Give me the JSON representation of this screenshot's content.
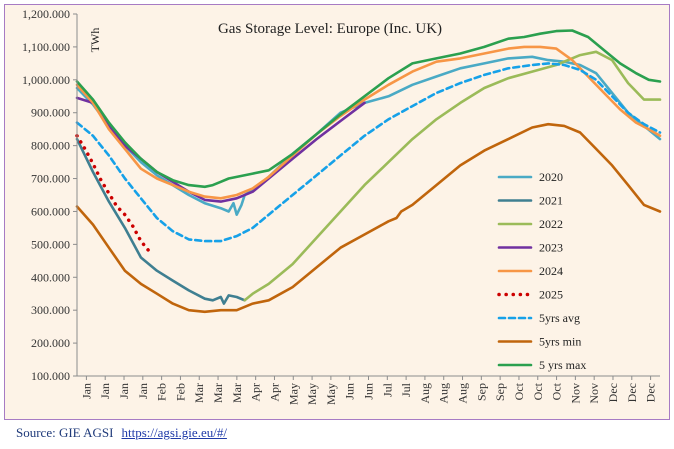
{
  "source": {
    "text": "Source: GIE AGSI",
    "link": "https://agsi.gie.eu/#/"
  },
  "chart_data": {
    "type": "line",
    "title": "Gas Storage Level: Europe (Inc. UK)",
    "ylabel": "TWh",
    "xlabel": "",
    "ylim": [
      100,
      1200
    ],
    "yticks": [
      "100.000",
      "200.000",
      "300.000",
      "400.000",
      "500.000",
      "600.000",
      "700.000",
      "800.000",
      "900.000",
      "1,000.000",
      "1,100.000",
      "1,200.000"
    ],
    "ytick_values": [
      100,
      200,
      300,
      400,
      500,
      600,
      700,
      800,
      900,
      1000,
      1100,
      1200
    ],
    "xlim": [
      0,
      365
    ],
    "x_unit": "day of year",
    "xticks": [
      "Jan",
      "Jan",
      "Jan",
      "Jan",
      "Feb",
      "Feb",
      "Mar",
      "Mar",
      "Mar",
      "Apr",
      "Apr",
      "May",
      "May",
      "May",
      "Jun",
      "Jun",
      "Jul",
      "Jul",
      "Aug",
      "Aug",
      "Aug",
      "Sep",
      "Sep",
      "Oct",
      "Oct",
      "Oct",
      "Nov",
      "Nov",
      "Dec",
      "Dec",
      "Dec"
    ],
    "grid": false,
    "legend_position": "right",
    "series": [
      {
        "name": "2020",
        "color": "#4aaac5",
        "style": "solid",
        "x": [
          0,
          10,
          20,
          30,
          40,
          50,
          60,
          70,
          80,
          90,
          95,
          98,
          100,
          103,
          105,
          110,
          120,
          135,
          150,
          165,
          180,
          195,
          210,
          225,
          240,
          255,
          270,
          285,
          295,
          305,
          315,
          325,
          335,
          345,
          355,
          365
        ],
        "y": [
          975,
          925,
          860,
          800,
          750,
          710,
          680,
          650,
          625,
          610,
          600,
          625,
          590,
          620,
          650,
          665,
          705,
          775,
          835,
          900,
          930,
          950,
          985,
          1010,
          1035,
          1050,
          1065,
          1070,
          1060,
          1055,
          1045,
          1020,
          960,
          900,
          860,
          820
        ]
      },
      {
        "name": "2021",
        "color": "#3f7f91",
        "style": "solid",
        "x": [
          0,
          10,
          20,
          30,
          40,
          50,
          60,
          70,
          80,
          85,
          90,
          92,
          95,
          100,
          105
        ],
        "y": [
          820,
          720,
          630,
          550,
          460,
          420,
          390,
          360,
          335,
          330,
          340,
          320,
          345,
          340,
          330
        ]
      },
      {
        "name": "2022",
        "color": "#9bbb59",
        "style": "solid",
        "x": [
          105,
          110,
          120,
          135,
          150,
          165,
          180,
          195,
          210,
          225,
          240,
          255,
          270,
          285,
          300,
          315,
          325,
          335,
          345,
          355,
          365
        ],
        "y": [
          330,
          350,
          380,
          440,
          520,
          600,
          680,
          750,
          820,
          880,
          930,
          975,
          1005,
          1025,
          1045,
          1075,
          1085,
          1060,
          990,
          940,
          940
        ]
      },
      {
        "name": "2023",
        "color": "#7030a0",
        "style": "solid",
        "x": [
          0,
          10,
          20,
          30,
          40,
          50,
          60,
          70,
          80,
          90,
          100,
          110,
          120,
          135,
          150,
          165,
          180
        ],
        "y": [
          945,
          930,
          860,
          800,
          760,
          720,
          690,
          660,
          635,
          630,
          640,
          660,
          700,
          760,
          820,
          875,
          930
        ]
      },
      {
        "name": "2024",
        "color": "#f79646",
        "style": "solid",
        "x": [
          0,
          10,
          20,
          30,
          40,
          50,
          60,
          70,
          80,
          90,
          100,
          110,
          120,
          135,
          150,
          165,
          180,
          195,
          210,
          225,
          240,
          255,
          270,
          280,
          290,
          300,
          310,
          320,
          330,
          340,
          350,
          358,
          365
        ],
        "y": [
          985,
          930,
          850,
          790,
          730,
          700,
          680,
          660,
          645,
          640,
          650,
          670,
          705,
          770,
          835,
          890,
          940,
          985,
          1025,
          1055,
          1065,
          1080,
          1095,
          1100,
          1100,
          1095,
          1060,
          1010,
          960,
          910,
          870,
          850,
          830
        ]
      },
      {
        "name": "2025",
        "color": "#cc0000",
        "style": "dotted",
        "x": [
          0,
          5,
          10,
          15,
          20,
          25,
          30,
          35,
          40,
          45
        ],
        "y": [
          830,
          790,
          745,
          695,
          655,
          615,
          590,
          555,
          510,
          480
        ]
      },
      {
        "name": "5yrs avg",
        "color": "#16a1e8",
        "style": "dashed",
        "x": [
          0,
          10,
          20,
          30,
          40,
          50,
          60,
          70,
          80,
          90,
          100,
          110,
          120,
          135,
          150,
          165,
          180,
          195,
          210,
          225,
          240,
          255,
          270,
          285,
          295,
          305,
          315,
          325,
          335,
          345,
          355,
          365
        ],
        "y": [
          870,
          830,
          770,
          700,
          640,
          580,
          540,
          515,
          510,
          510,
          525,
          550,
          590,
          650,
          710,
          770,
          830,
          880,
          920,
          960,
          990,
          1015,
          1035,
          1045,
          1050,
          1045,
          1030,
          1000,
          950,
          900,
          865,
          840
        ]
      },
      {
        "name": "5yrs min",
        "color": "#c0650c",
        "style": "solid",
        "x": [
          0,
          10,
          20,
          30,
          40,
          50,
          60,
          70,
          80,
          90,
          100,
          110,
          120,
          135,
          150,
          165,
          180,
          195,
          200,
          203,
          210,
          225,
          240,
          255,
          270,
          285,
          295,
          305,
          315,
          325,
          335,
          345,
          355,
          365
        ],
        "y": [
          615,
          560,
          490,
          420,
          380,
          350,
          320,
          300,
          295,
          300,
          300,
          320,
          330,
          370,
          430,
          490,
          530,
          570,
          580,
          600,
          620,
          680,
          740,
          785,
          820,
          855,
          865,
          860,
          840,
          790,
          740,
          680,
          620,
          600
        ]
      },
      {
        "name": "5 yrs max",
        "color": "#2ba04f",
        "style": "solid",
        "x": [
          0,
          10,
          20,
          30,
          40,
          50,
          60,
          70,
          80,
          85,
          90,
          95,
          100,
          110,
          120,
          135,
          150,
          165,
          180,
          195,
          210,
          225,
          240,
          255,
          270,
          280,
          290,
          300,
          310,
          320,
          330,
          340,
          350,
          358,
          365
        ],
        "y": [
          995,
          940,
          870,
          810,
          760,
          720,
          695,
          680,
          675,
          680,
          690,
          700,
          705,
          715,
          725,
          775,
          835,
          895,
          950,
          1005,
          1050,
          1065,
          1080,
          1100,
          1125,
          1130,
          1140,
          1148,
          1150,
          1130,
          1090,
          1050,
          1020,
          1000,
          995
        ]
      }
    ]
  }
}
